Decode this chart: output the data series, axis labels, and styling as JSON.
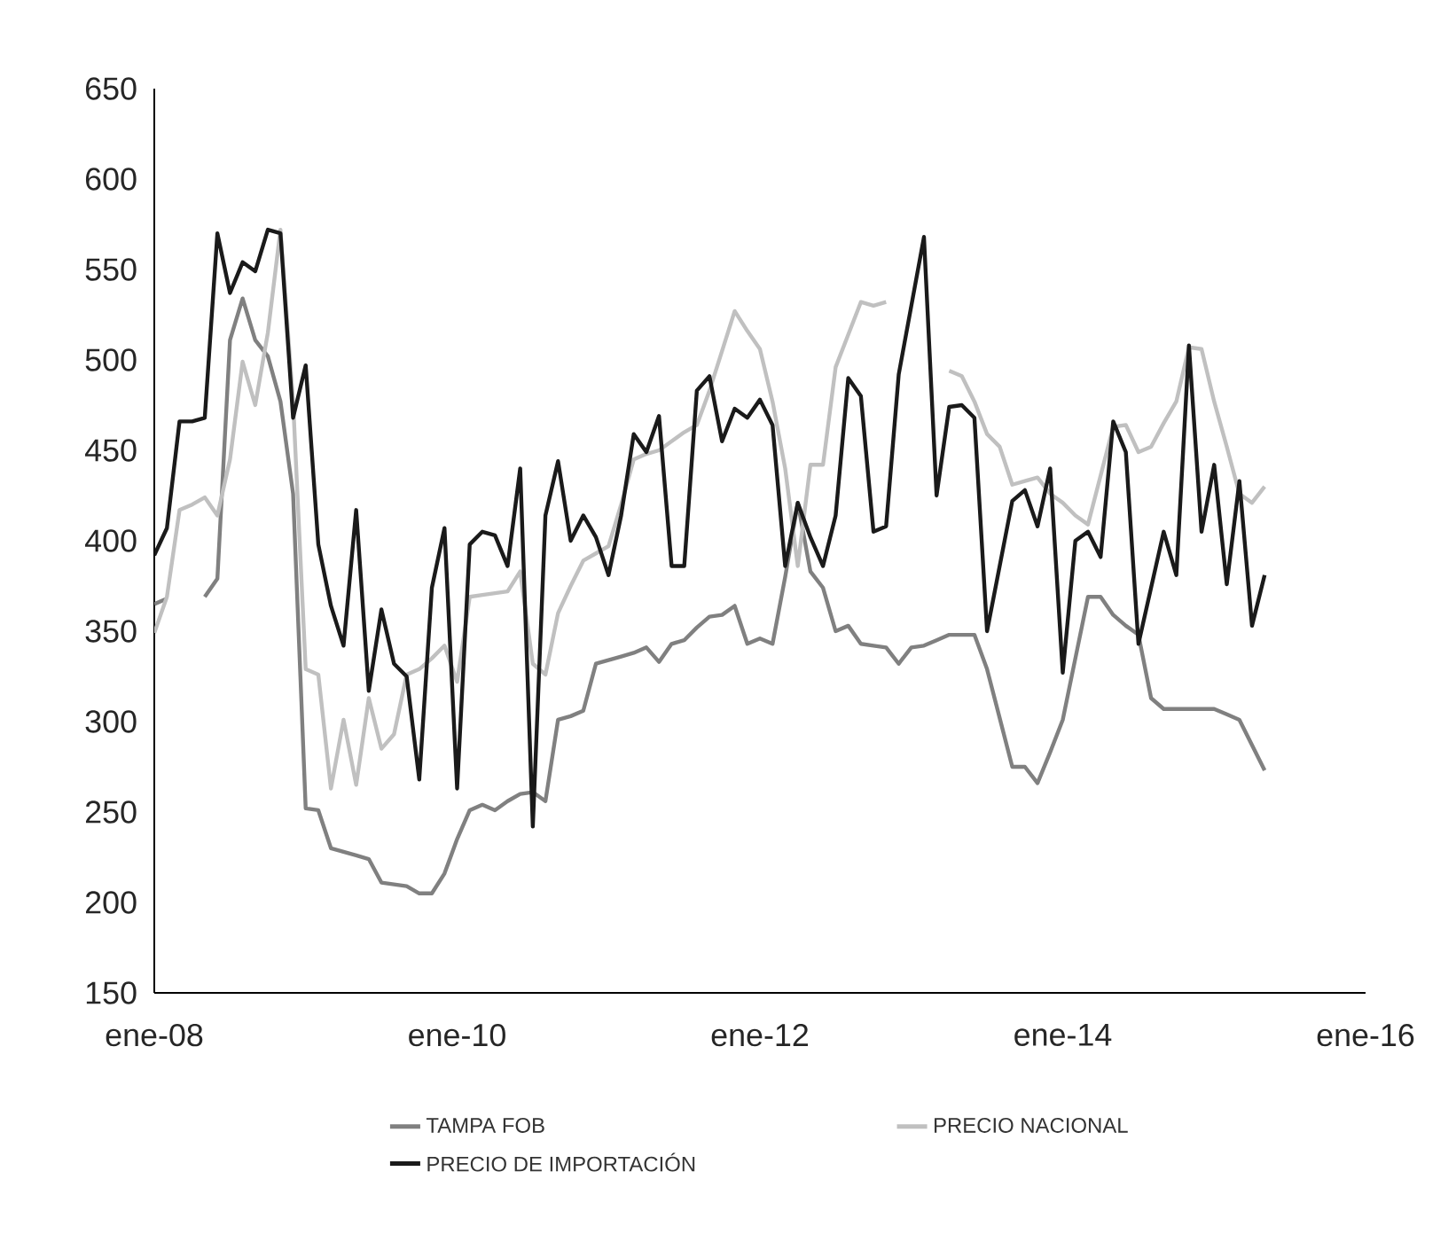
{
  "chart_data": {
    "type": "line",
    "x": [
      "2008-01",
      "2008-02",
      "2008-03",
      "2008-04",
      "2008-05",
      "2008-06",
      "2008-07",
      "2008-08",
      "2008-09",
      "2008-10",
      "2008-11",
      "2008-12",
      "2009-01",
      "2009-02",
      "2009-03",
      "2009-04",
      "2009-05",
      "2009-06",
      "2009-07",
      "2009-08",
      "2009-09",
      "2009-10",
      "2009-11",
      "2009-12",
      "2010-01",
      "2010-02",
      "2010-03",
      "2010-04",
      "2010-05",
      "2010-06",
      "2010-07",
      "2010-08",
      "2010-09",
      "2010-10",
      "2010-11",
      "2010-12",
      "2011-01",
      "2011-02",
      "2011-03",
      "2011-04",
      "2011-05",
      "2011-06",
      "2011-07",
      "2011-08",
      "2011-09",
      "2011-10",
      "2011-11",
      "2011-12",
      "2012-01",
      "2012-02",
      "2012-03",
      "2012-04",
      "2012-05",
      "2012-06",
      "2012-07",
      "2012-08",
      "2012-09",
      "2012-10",
      "2012-11",
      "2012-12",
      "2013-01",
      "2013-02",
      "2013-03",
      "2013-04",
      "2013-05",
      "2013-06",
      "2013-07",
      "2013-08",
      "2013-09",
      "2013-10",
      "2013-11",
      "2013-12",
      "2014-01",
      "2014-02",
      "2014-03",
      "2014-04",
      "2014-05",
      "2014-06",
      "2014-07",
      "2014-08",
      "2014-09",
      "2014-10",
      "2014-11",
      "2014-12",
      "2015-01",
      "2015-02",
      "2015-03",
      "2015-04",
      "2015-05"
    ],
    "series": [
      {
        "name": "TAMPA FOB",
        "color": "#808080",
        "values": [
          365,
          368,
          null,
          null,
          369,
          379,
          511,
          534,
          511,
          502,
          477,
          426,
          252,
          251,
          230,
          228,
          226,
          224,
          211,
          210,
          209,
          205,
          205,
          216,
          235,
          251,
          254,
          251,
          256,
          260,
          261,
          256,
          301,
          303,
          306,
          332,
          334,
          336,
          338,
          341,
          333,
          343,
          345,
          352,
          358,
          359,
          364,
          343,
          346,
          343,
          380,
          421,
          383,
          374,
          350,
          353,
          343,
          342,
          341,
          332,
          341,
          342,
          345,
          348,
          348,
          348,
          329,
          302,
          275,
          275,
          266,
          283,
          301,
          335,
          369,
          369,
          359,
          353,
          348,
          313,
          307,
          307,
          307,
          307,
          307,
          304,
          301,
          287,
          273
        ]
      },
      {
        "name": "PRECIO NACIONAL",
        "color": "#c0c0c0",
        "values": [
          349,
          369,
          417,
          420,
          424,
          414,
          445,
          499,
          475,
          515,
          572,
          477,
          329,
          326,
          263,
          301,
          265,
          313,
          285,
          293,
          326,
          329,
          335,
          342,
          322,
          369,
          370,
          371,
          372,
          383,
          332,
          326,
          360,
          375,
          389,
          393,
          397,
          420,
          445,
          448,
          450,
          455,
          460,
          464,
          483,
          505,
          527,
          516,
          506,
          477,
          440,
          386,
          442,
          442,
          496,
          514,
          532,
          530,
          532,
          null,
          null,
          null,
          null,
          494,
          491,
          477,
          459,
          452,
          431,
          433,
          435,
          426,
          421,
          414,
          409,
          436,
          463,
          464,
          449,
          452,
          465,
          477,
          507,
          506,
          477,
          452,
          426,
          421,
          430
        ]
      },
      {
        "name": "PRECIO DE IMPORTACIÓN",
        "color": "#1a1a1a",
        "values": [
          392,
          407,
          466,
          466,
          468,
          570,
          537,
          554,
          549,
          572,
          570,
          468,
          497,
          398,
          364,
          342,
          417,
          317,
          362,
          332,
          325,
          268,
          374,
          407,
          263,
          398,
          405,
          403,
          386,
          440,
          242,
          414,
          444,
          400,
          414,
          402,
          381,
          414,
          459,
          449,
          469,
          386,
          386,
          483,
          491,
          455,
          473,
          468,
          478,
          464,
          386,
          421,
          402,
          386,
          414,
          490,
          480,
          405,
          408,
          492,
          530,
          568,
          425,
          474,
          475,
          468,
          350,
          386,
          422,
          428,
          408,
          440,
          327,
          400,
          405,
          391,
          466,
          449,
          343,
          374,
          405,
          381,
          508,
          405,
          442,
          376,
          433,
          353,
          381
        ]
      }
    ],
    "xlim": [
      "2008-01",
      "2016-01"
    ],
    "xticks": [
      {
        "value": "2008-01",
        "label": "ene-08"
      },
      {
        "value": "2010-01",
        "label": "ene-10"
      },
      {
        "value": "2012-01",
        "label": "ene-12"
      },
      {
        "value": "2014-01",
        "label": "ene-14"
      },
      {
        "value": "2016-01",
        "label": "ene-16"
      }
    ],
    "ylim": [
      150,
      650
    ],
    "yticks": [
      150,
      200,
      250,
      300,
      350,
      400,
      450,
      500,
      550,
      600,
      650
    ],
    "legend": "bottom"
  }
}
